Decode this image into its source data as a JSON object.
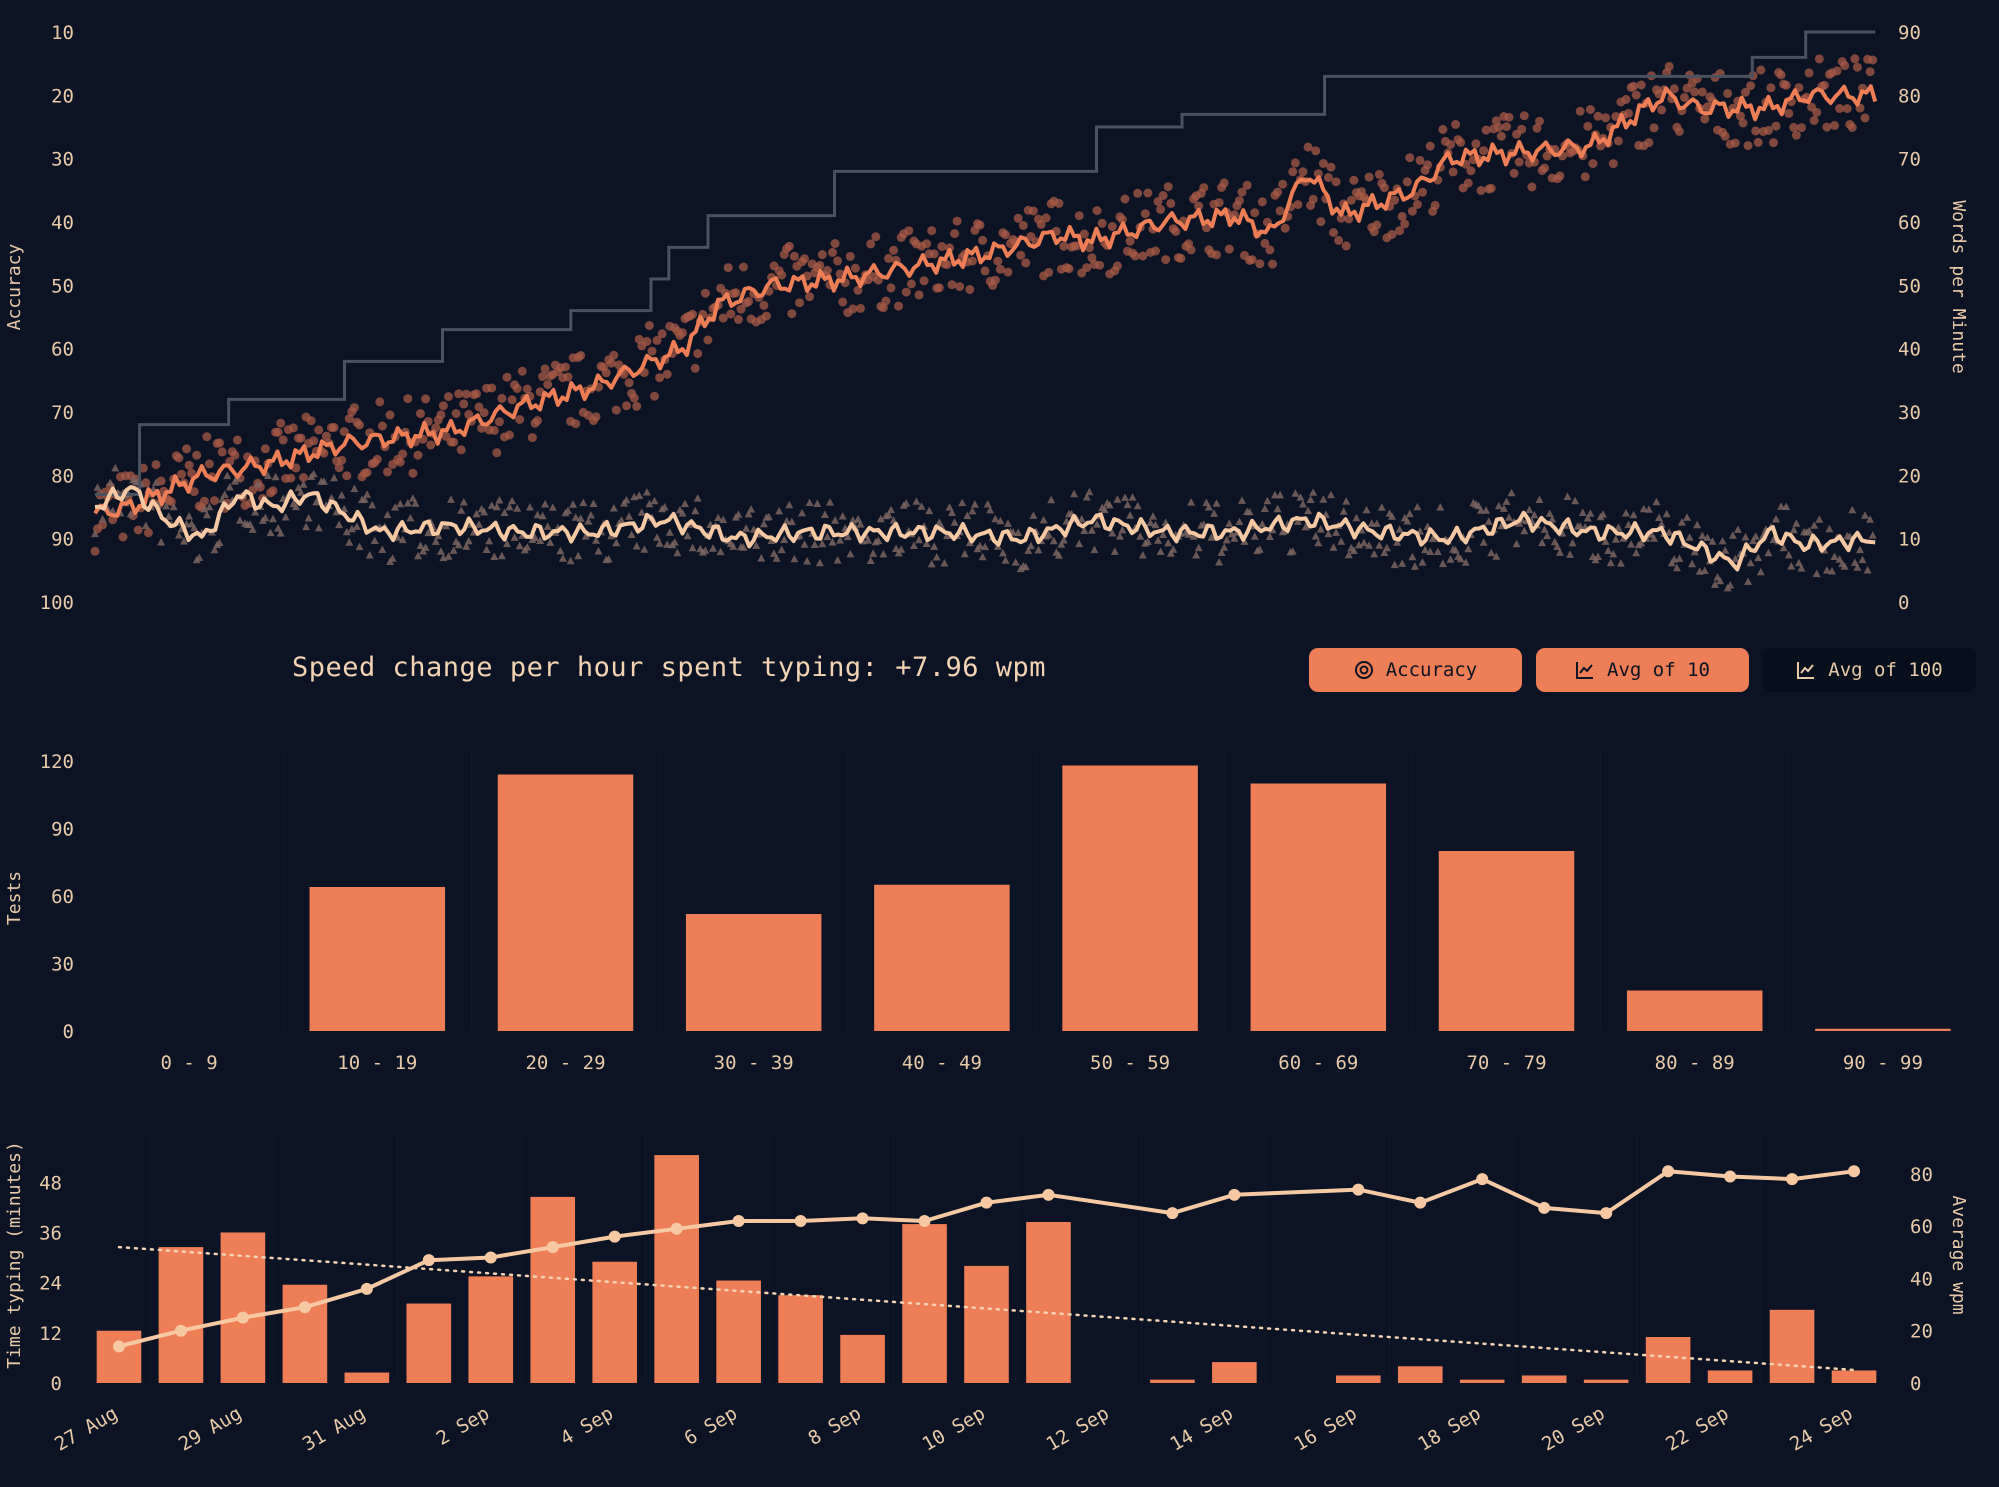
{
  "stats": {
    "speed_change_label": "Speed change per hour spent typing: +7.96 wpm"
  },
  "toggles": [
    {
      "label": "Accuracy",
      "icon": "target-icon",
      "active": true
    },
    {
      "label": "Avg of 10",
      "icon": "line-chart-icon",
      "active": true
    },
    {
      "label": "Avg of 100",
      "icon": "line-chart-icon",
      "active": false
    }
  ],
  "colors": {
    "background": "#0b1324",
    "accent": "#ee7e55",
    "accuracy_line": "#f7c9a3",
    "text": "#e8c9a8",
    "pb_line": "#4a5260"
  },
  "chart_data": [
    {
      "type": "scatter",
      "title": "",
      "ylabel_left": "Accuracy",
      "ylabel_right": "Words per Minute",
      "left_axis": {
        "ticks": [
          10,
          20,
          30,
          40,
          50,
          60,
          70,
          80,
          90,
          100
        ],
        "range": [
          10,
          100
        ],
        "inverted": true
      },
      "right_axis": {
        "ticks": [
          0,
          10,
          20,
          30,
          40,
          50,
          60,
          70,
          80,
          90
        ],
        "range": [
          0,
          90
        ]
      },
      "test_count": 700,
      "wpm_avg10_anchors": [
        [
          0,
          14
        ],
        [
          20,
          15
        ],
        [
          60,
          20
        ],
        [
          100,
          22
        ],
        [
          140,
          25
        ],
        [
          200,
          27
        ],
        [
          240,
          31
        ],
        [
          280,
          34
        ],
        [
          330,
          40
        ],
        [
          350,
          47
        ],
        [
          380,
          50
        ],
        [
          420,
          51
        ],
        [
          460,
          53
        ],
        [
          500,
          55
        ],
        [
          540,
          58
        ],
        [
          560,
          57
        ],
        [
          600,
          60
        ],
        [
          640,
          61
        ],
        [
          660,
          58
        ],
        [
          680,
          68
        ],
        [
          700,
          61
        ],
        [
          740,
          65
        ],
        [
          760,
          70
        ],
        [
          800,
          71
        ],
        [
          840,
          72
        ],
        [
          880,
          80
        ],
        [
          900,
          78
        ],
        [
          940,
          78
        ],
        [
          960,
          80
        ],
        [
          999,
          80
        ]
      ],
      "accuracy_avg10_anchors": [
        [
          0,
          85
        ],
        [
          20,
          82
        ],
        [
          40,
          87
        ],
        [
          60,
          90
        ],
        [
          80,
          83
        ],
        [
          100,
          85
        ],
        [
          120,
          83
        ],
        [
          140,
          86
        ],
        [
          160,
          89
        ],
        [
          200,
          88
        ],
        [
          240,
          89
        ],
        [
          280,
          89
        ],
        [
          320,
          87
        ],
        [
          360,
          90
        ],
        [
          400,
          89
        ],
        [
          440,
          89
        ],
        [
          480,
          89
        ],
        [
          520,
          90
        ],
        [
          560,
          87
        ],
        [
          600,
          89
        ],
        [
          640,
          89
        ],
        [
          680,
          87
        ],
        [
          720,
          89
        ],
        [
          760,
          90
        ],
        [
          800,
          87
        ],
        [
          840,
          89
        ],
        [
          880,
          89
        ],
        [
          920,
          94
        ],
        [
          940,
          89
        ],
        [
          960,
          91
        ],
        [
          999,
          90
        ]
      ],
      "personal_best_steps": [
        [
          0,
          17
        ],
        [
          25,
          17
        ],
        [
          75,
          28
        ],
        [
          140,
          32
        ],
        [
          195,
          38
        ],
        [
          267,
          43
        ],
        [
          312,
          46
        ],
        [
          322,
          51
        ],
        [
          344,
          56
        ],
        [
          415,
          61
        ],
        [
          562,
          68
        ],
        [
          610,
          75
        ],
        [
          690,
          77
        ],
        [
          930,
          83
        ],
        [
          960,
          86
        ],
        [
          999,
          90
        ]
      ]
    },
    {
      "type": "bar",
      "title": "",
      "ylabel": "Tests",
      "categories": [
        "0 - 9",
        "10 - 19",
        "20 - 29",
        "30 - 39",
        "40 - 49",
        "50 - 59",
        "60 - 69",
        "70 - 79",
        "80 - 89",
        "90 - 99"
      ],
      "values": [
        0,
        64,
        114,
        52,
        65,
        118,
        110,
        80,
        18,
        1
      ],
      "yticks": [
        0,
        30,
        60,
        90,
        120
      ],
      "ylim": [
        0,
        120
      ]
    },
    {
      "type": "bar",
      "title": "",
      "ylabel_left": "Time typing (minutes)",
      "ylabel_right": "Average wpm",
      "categories": [
        "27 Aug",
        "28 Aug",
        "29 Aug",
        "30 Aug",
        "31 Aug",
        "1 Sep",
        "2 Sep",
        "3 Sep",
        "4 Sep",
        "5 Sep",
        "6 Sep",
        "7 Sep",
        "8 Sep",
        "9 Sep",
        "10 Sep",
        "11 Sep",
        "12 Sep",
        "13 Sep",
        "14 Sep",
        "15 Sep",
        "16 Sep",
        "17 Sep",
        "18 Sep",
        "19 Sep",
        "20 Sep",
        "21 Sep",
        "22 Sep",
        "23 Sep",
        "24 Sep"
      ],
      "xtick_labels": [
        "27 Aug",
        "29 Aug",
        "31 Aug",
        "2 Sep",
        "4 Sep",
        "6 Sep",
        "8 Sep",
        "10 Sep",
        "12 Sep",
        "14 Sep",
        "16 Sep",
        "18 Sep",
        "20 Sep",
        "22 Sep",
        "24 Sep"
      ],
      "series": [
        {
          "values": [
            12.5,
            32.5,
            36,
            23.5,
            2.5,
            19,
            25.5,
            44.5,
            29,
            54.5,
            24.5,
            21,
            11.5,
            38,
            28,
            38.5,
            0,
            0.8,
            5,
            0,
            1.8,
            4,
            0.8,
            1.8,
            0.8,
            11,
            3,
            17.5,
            3
          ]
        },
        {
          "values": [
            14,
            20,
            25,
            29,
            36,
            47,
            48,
            52,
            56,
            59,
            62,
            62,
            63,
            62,
            69,
            72,
            null,
            65,
            72,
            null,
            74,
            69,
            78,
            67,
            65,
            81,
            79,
            78,
            81
          ]
        }
      ],
      "trend": [
        52,
        5
      ],
      "yticks_left": [
        0,
        12,
        24,
        36,
        48
      ],
      "yticks_right": [
        0,
        20,
        40,
        60,
        80
      ],
      "ylim_left": [
        0,
        55
      ],
      "ylim_right": [
        0,
        88
      ]
    }
  ]
}
